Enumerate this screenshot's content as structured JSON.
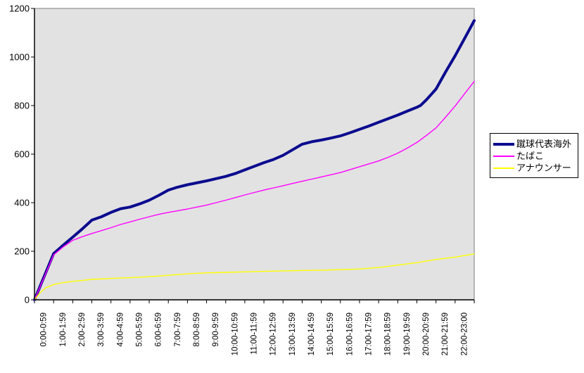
{
  "chart_data": {
    "type": "line",
    "title": "",
    "xlabel": "",
    "ylabel": "",
    "grid": false,
    "legend_position": "right",
    "plot_bg": "#e2e2e2",
    "plot_border": "#909090",
    "axis_color": "#000000",
    "ylim": [
      0,
      1200
    ],
    "yticks": [
      0,
      200,
      400,
      600,
      800,
      1000,
      1200
    ],
    "categories": [
      "0:00-0:59",
      "1:00-1:59",
      "2:00-2:59",
      "3:00-3:59",
      "4:00-4:59",
      "5:00-5:59",
      "6:00-6:59",
      "7:00-7:59",
      "8:00-8:59",
      "9:00-9:59",
      "10:00-10:59",
      "11:00-11:59",
      "12:00-12:59",
      "13:00-13:59",
      "14:00-14:59",
      "15:00-15:59",
      "16:00-16:59",
      "17:00-17:59",
      "18:00-18:59",
      "19:00-19:59",
      "20:00-20:59",
      "21:00-21:59",
      "22:00-23:00"
    ],
    "series": [
      {
        "name": "蹴球代表海外",
        "color": "#0b0b8f",
        "stroke_width": 4,
        "x": [
          0,
          0.5,
          1,
          1.5,
          2,
          2.5,
          3,
          3.5,
          4,
          4.5,
          5,
          5.5,
          6,
          6.5,
          7,
          7.4,
          8,
          9,
          10,
          10.5,
          11,
          11.5,
          12,
          12.5,
          13,
          13.5,
          14,
          14.5,
          15,
          15.5,
          16,
          16.5,
          17,
          17.5,
          18,
          18.5,
          19,
          19.5,
          20,
          20.2,
          20.5,
          21,
          21.5,
          22,
          22.5,
          23
        ],
        "values": [
          0,
          95,
          190,
          225,
          258,
          292,
          328,
          342,
          360,
          375,
          382,
          395,
          410,
          430,
          452,
          462,
          474,
          490,
          508,
          520,
          535,
          550,
          565,
          578,
          595,
          618,
          641,
          651,
          658,
          666,
          675,
          688,
          702,
          716,
          731,
          746,
          761,
          777,
          793,
          801,
          824,
          868,
          938,
          1005,
          1077,
          1150
        ]
      },
      {
        "name": "たばこ",
        "color": "#ff00ff",
        "stroke_width": 1.4,
        "x": [
          0,
          0.5,
          1,
          1.5,
          2,
          2.5,
          3,
          3.5,
          4,
          4.5,
          5,
          5.5,
          6,
          6.5,
          7,
          7.5,
          8,
          8.5,
          9,
          9.5,
          10,
          10.5,
          11,
          11.5,
          12,
          12.5,
          13,
          13.5,
          14,
          14.5,
          15,
          15.5,
          16,
          16.5,
          17,
          17.5,
          18,
          18.5,
          19,
          19.5,
          20,
          20.5,
          21,
          21.5,
          22,
          22.5,
          23
        ],
        "values": [
          0,
          92,
          185,
          218,
          245,
          260,
          273,
          285,
          297,
          310,
          321,
          332,
          342,
          352,
          360,
          367,
          374,
          382,
          390,
          400,
          410,
          421,
          432,
          442,
          452,
          461,
          470,
          479,
          488,
          497,
          506,
          515,
          524,
          536,
          548,
          560,
          572,
          587,
          604,
          625,
          648,
          677,
          708,
          752,
          798,
          849,
          900
        ]
      },
      {
        "name": "アナウンサー",
        "color": "#ffff00",
        "stroke_width": 1.4,
        "x": [
          0,
          0.3,
          0.6,
          1,
          1.5,
          2,
          2.5,
          3,
          4,
          5,
          6,
          7,
          8,
          9,
          10,
          11,
          12,
          13,
          14,
          15,
          16,
          17,
          18,
          19,
          20,
          21,
          22,
          23
        ],
        "values": [
          0,
          30,
          50,
          63,
          71,
          76,
          80,
          84,
          88,
          91,
          95,
          101,
          107,
          111,
          113,
          115,
          117,
          119,
          121,
          122,
          124,
          127,
          133,
          143,
          153,
          166,
          176,
          189
        ]
      }
    ]
  }
}
